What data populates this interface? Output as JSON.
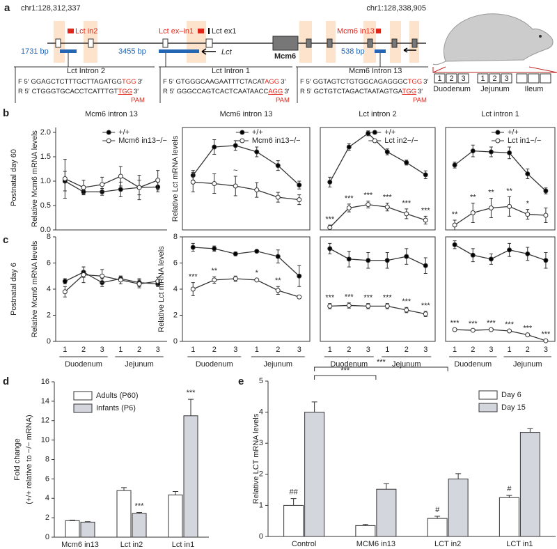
{
  "panel_labels": [
    "a",
    "b",
    "c",
    "d",
    "e"
  ],
  "row_labels": [
    "Postnatal day 60",
    "Postnatal day 6"
  ],
  "panel_a": {
    "coords": [
      "chr1:128,312,337",
      "chr1:128,338,905"
    ],
    "targets": [
      "Lct in2",
      "Lct ex–in1",
      "Mcm6 in13"
    ],
    "exon_label": "Lct ex1",
    "deletions": [
      "1731 bp",
      "3455 bp",
      "538 bp"
    ],
    "genes": [
      "Lct",
      "Mcm6"
    ],
    "primers": [
      {
        "label": "Lct Intron 2",
        "rows": [
          {
            "strand": "F 5′",
            "seq": "GGAGCTCTTTGCTTAGATGG",
            "pam": "TGG",
            "end": "3′"
          },
          {
            "strand": "R 5′",
            "seq": "CTGGGTGCACCTCATTTGT",
            "pam": "TGG",
            "end": "3′"
          }
        ],
        "pam_label": "PAM"
      },
      {
        "label": "Lct Intron 1",
        "rows": [
          {
            "strand": "F 5′",
            "seq": "GTGGGCAAGAATTTCTACAT",
            "pam": "AGG",
            "end": "3′"
          },
          {
            "strand": "R 5′",
            "seq": "GGGCCAGTCACTCAATAACC",
            "pam": "AGG",
            "end": "3′"
          }
        ],
        "pam_label": "PAM"
      },
      {
        "label": "Mcm6 Intron 13",
        "rows": [
          {
            "strand": "F 5′",
            "seq": "GGTAGTCTGTGGCAGAGGGC",
            "pam": "TGG",
            "end": "3′"
          },
          {
            "strand": "R 5′",
            "seq": "GCTGTCTAGACTAATAGTGA",
            "pam": "TGG",
            "end": "3′"
          }
        ],
        "pam_label": "PAM"
      }
    ],
    "segment_numbers": [
      "1",
      "2",
      "3"
    ],
    "segments": [
      "Duodenum",
      "Jejunum",
      "Ileum"
    ]
  },
  "chart_data": [
    {
      "type": "line",
      "title": "Mcm6 intron 13",
      "ylabel": "Relative Mcm6 mRNA levels",
      "ylim": [
        0,
        2.1
      ],
      "yticks": [
        {
          "value": 0,
          "label": "0.0"
        },
        {
          "value": 0.5,
          "label": "0.5"
        },
        {
          "value": 1,
          "label": "1.0"
        },
        {
          "value": 1.5,
          "label": "1.5"
        },
        {
          "value": 2,
          "label": "2.0"
        }
      ],
      "series": [
        {
          "name": "+/+",
          "color": "#000000",
          "values": [
            1.0,
            0.78,
            0.78,
            0.83,
            0.87,
            0.88
          ],
          "errors": [
            0.2,
            0.05,
            0.07,
            0.15,
            0.15,
            0.1
          ]
        },
        {
          "name": "Mcm6 in13−/−",
          "color": "#ffffff",
          "values": [
            1.05,
            0.87,
            0.93,
            1.1,
            0.87,
            1.02
          ],
          "errors": [
            0.4,
            0.15,
            0.15,
            0.2,
            0.25,
            0.2
          ]
        }
      ]
    },
    {
      "type": "line",
      "title": "Mcm6 intron 13",
      "ylabel": "Relative Lct mRNA levels",
      "ylim": [
        0,
        2.1
      ],
      "series": [
        {
          "name": "+/+",
          "color": "#000000",
          "values": [
            1.12,
            1.7,
            1.73,
            1.6,
            1.32,
            0.92
          ],
          "errors": [
            0.1,
            0.15,
            0.1,
            0.1,
            0.1,
            0.08
          ]
        },
        {
          "name": "Mcm6 in13−/−",
          "color": "#ffffff",
          "values": [
            0.98,
            0.95,
            0.9,
            0.82,
            0.67,
            0.62
          ],
          "errors": [
            0.2,
            0.2,
            0.2,
            0.15,
            0.1,
            0.1
          ],
          "annotations": [
            null,
            null,
            "~",
            null,
            null,
            null
          ]
        }
      ]
    },
    {
      "type": "line",
      "title": "Lct intron 2",
      "ylim": [
        0,
        2.1
      ],
      "series": [
        {
          "name": "+/+",
          "color": "#000000",
          "values": [
            0.98,
            1.7,
            1.98,
            1.6,
            1.38,
            1.13
          ],
          "errors": [
            0.1,
            0.07,
            0.05,
            0.06,
            0.05,
            0.08
          ]
        },
        {
          "name": "Lct in2−/−",
          "color": "#ffffff",
          "values": [
            0.05,
            0.45,
            0.52,
            0.47,
            0.33,
            0.2
          ],
          "errors": [
            0.05,
            0.08,
            0.07,
            0.08,
            0.1,
            0.08
          ],
          "annotations": [
            "***",
            "***",
            "***",
            "***",
            "***",
            "***"
          ]
        }
      ]
    },
    {
      "type": "line",
      "title": "Lct intron 1",
      "ylim": [
        0,
        2.1
      ],
      "series": [
        {
          "name": "+/+",
          "color": "#000000",
          "values": [
            1.33,
            1.62,
            1.6,
            1.58,
            1.15,
            0.8
          ],
          "errors": [
            0.06,
            0.12,
            0.1,
            0.12,
            0.1,
            0.06
          ]
        },
        {
          "name": "Lct in1−/−",
          "color": "#ffffff",
          "values": [
            0.1,
            0.35,
            0.45,
            0.48,
            0.32,
            0.3
          ],
          "errors": [
            0.1,
            0.2,
            0.2,
            0.2,
            0.1,
            0.15
          ],
          "annotations": [
            "**",
            "**",
            "**",
            "**",
            "*",
            null
          ]
        }
      ]
    },
    {
      "type": "line",
      "ylabel": "Relative Mcm6 mRNA levels",
      "ylim": [
        0,
        8
      ],
      "yticks": [
        0,
        2,
        4,
        6,
        8
      ],
      "categories": [
        "1",
        "2",
        "3",
        "1",
        "2",
        "3"
      ],
      "groups": [
        "Duodenum",
        "Jejunum"
      ],
      "series": [
        {
          "name": "+/+",
          "color": "#000000",
          "values": [
            4.6,
            5.3,
            4.5,
            4.8,
            4.5,
            4.4
          ],
          "errors": [
            0.2,
            0.4,
            0.3,
            0.2,
            0.3,
            0.2
          ]
        },
        {
          "name": "Mcm6 in13−/−",
          "color": "#ffffff",
          "values": [
            3.8,
            5.1,
            5.0,
            4.7,
            4.4,
            4.6
          ],
          "errors": [
            0.4,
            0.6,
            0.5,
            0.3,
            0.3,
            0.3
          ]
        }
      ]
    },
    {
      "type": "line",
      "ylabel": "Relative Lct mRNA levels",
      "ylim": [
        0,
        8
      ],
      "yticks": [
        0,
        2,
        4,
        6,
        8
      ],
      "categories": [
        "1",
        "2",
        "3",
        "1",
        "2",
        "3"
      ],
      "groups": [
        "Duodenum",
        "Jejunum"
      ],
      "series": [
        {
          "name": "+/+",
          "color": "#000000",
          "values": [
            7.2,
            7.1,
            6.7,
            6.9,
            6.5,
            5.0
          ],
          "errors": [
            0.3,
            0.2,
            0.15,
            0.1,
            0.5,
            0.8
          ]
        },
        {
          "name": "Mcm6 in13−/−",
          "color": "#ffffff",
          "values": [
            4.0,
            4.7,
            4.8,
            4.7,
            3.9,
            3.4
          ],
          "errors": [
            0.5,
            0.25,
            0.2,
            0.1,
            0.3,
            0.1
          ],
          "annotations": [
            "***",
            "**",
            null,
            "*",
            "**",
            null
          ]
        }
      ]
    },
    {
      "type": "line",
      "ylim": [
        0,
        8
      ],
      "categories": [
        "1",
        "2",
        "3",
        "1",
        "2",
        "3"
      ],
      "groups": [
        "Duodenum",
        "Jejunum"
      ],
      "series": [
        {
          "name": "+/+",
          "color": "#000000",
          "values": [
            7.1,
            6.3,
            6.2,
            6.2,
            6.5,
            5.8
          ],
          "errors": [
            0.4,
            0.6,
            0.6,
            0.6,
            0.6,
            0.6
          ]
        },
        {
          "name": "Lct in2−/−",
          "color": "#ffffff",
          "values": [
            2.7,
            2.75,
            2.7,
            2.7,
            2.4,
            2.1
          ],
          "errors": [
            0.2,
            0.2,
            0.2,
            0.2,
            0.2,
            0.2
          ],
          "annotations": [
            "***",
            "***",
            "***",
            "***",
            "***",
            "***"
          ]
        }
      ]
    },
    {
      "type": "line",
      "ylim": [
        0,
        8
      ],
      "categories": [
        "1",
        "2",
        "3",
        "1",
        "2",
        "3"
      ],
      "groups": [
        "Duodenum",
        "Jejunum"
      ],
      "series": [
        {
          "name": "+/+",
          "color": "#000000",
          "values": [
            7.4,
            6.6,
            6.3,
            7.0,
            6.7,
            6.2
          ],
          "errors": [
            0.3,
            0.5,
            0.4,
            0.5,
            0.5,
            0.6
          ]
        },
        {
          "name": "Lct in1−/−",
          "color": "#ffffff",
          "values": [
            0.9,
            0.85,
            0.9,
            0.8,
            0.5,
            0.05
          ],
          "errors": [
            0.05,
            0.05,
            0.05,
            0.05,
            0.05,
            0.05
          ],
          "annotations": [
            "***",
            "***",
            "***",
            "***",
            "***",
            "***"
          ]
        }
      ]
    },
    {
      "type": "bar",
      "ylabel": [
        "Fold change",
        "(+/+ relative to −/− mRNA)"
      ],
      "ylim": [
        0,
        16
      ],
      "yticks": [
        0,
        2,
        4,
        6,
        8,
        10,
        12,
        14,
        16
      ],
      "categories": [
        "Mcm6 in13",
        "Lct in2",
        "Lct in1"
      ],
      "legend": "upper left",
      "series": [
        {
          "name": "Adults (P60)",
          "color": "#ffffff",
          "values": [
            1.7,
            4.8,
            4.35
          ],
          "errors": [
            0.05,
            0.3,
            0.35
          ]
        },
        {
          "name": "Infants (P6)",
          "color": "#d4d6de",
          "values": [
            1.55,
            2.45,
            12.5
          ],
          "errors": [
            0.05,
            0.1,
            1.7
          ],
          "annotations": [
            null,
            "***",
            "***"
          ]
        }
      ]
    },
    {
      "type": "bar",
      "ylabel": [
        "Relative LCT mRNA levels"
      ],
      "ylim": [
        0,
        5
      ],
      "yticks": [
        0,
        1,
        2,
        3,
        4,
        5
      ],
      "categories": [
        "Control",
        "MCM6 in13",
        "LCT in2",
        "LCT in1"
      ],
      "legend": "upper right",
      "series": [
        {
          "name": "Day 6",
          "color": "#ffffff",
          "values": [
            1.0,
            0.35,
            0.58,
            1.25
          ],
          "errors": [
            0.22,
            0.04,
            0.07,
            0.07
          ],
          "annotations": [
            "##",
            null,
            "#",
            "#"
          ]
        },
        {
          "name": "Day 15",
          "color": "#d4d6de",
          "values": [
            4.0,
            1.52,
            1.85,
            3.35
          ],
          "errors": [
            0.33,
            0.18,
            0.17,
            0.12
          ]
        }
      ],
      "comparisons": [
        {
          "from": 0,
          "to": 1,
          "label": "***"
        },
        {
          "from": 0,
          "to": 2,
          "label": "***"
        }
      ]
    }
  ]
}
